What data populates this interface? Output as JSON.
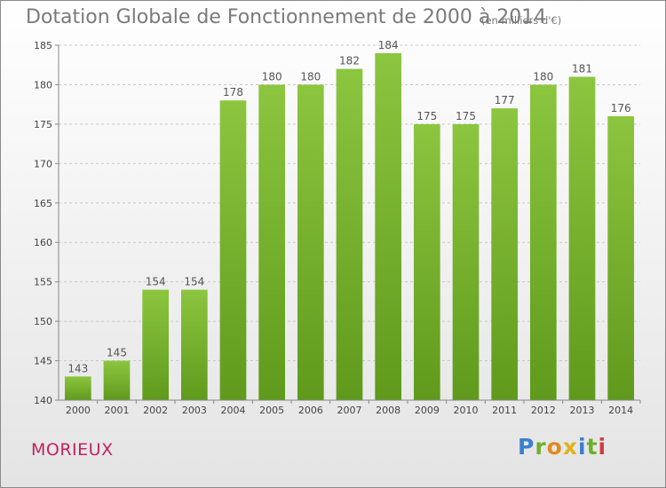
{
  "header": {
    "title": "Dotation Globale de Fonctionnement de 2000 à 2014",
    "unit": "(en milliers d'€)"
  },
  "commune": "MORIEUX",
  "logo": {
    "letters": [
      "P",
      "r",
      "o",
      "x",
      "i",
      "t",
      "i"
    ],
    "colors": [
      "#3a7fd0",
      "#6fb02c",
      "#e38a1d",
      "#e0b21a",
      "#3a7fd0",
      "#6fb02c",
      "#d23d3d"
    ]
  },
  "chart_data": {
    "type": "bar",
    "categories": [
      "2000",
      "2001",
      "2002",
      "2003",
      "2004",
      "2005",
      "2006",
      "2007",
      "2008",
      "2009",
      "2010",
      "2011",
      "2012",
      "2013",
      "2014"
    ],
    "values": [
      143,
      145,
      154,
      154,
      178,
      180,
      180,
      182,
      184,
      175,
      175,
      177,
      180,
      181,
      176
    ],
    "ylim": [
      140,
      185
    ],
    "yticks": [
      140,
      145,
      150,
      155,
      160,
      165,
      170,
      175,
      180,
      185
    ],
    "xlabel": "",
    "ylabel": "",
    "grid": "horizontal dashed",
    "bar_color": "#8cc63f",
    "bar_color_dark": "#5f9a1c"
  }
}
